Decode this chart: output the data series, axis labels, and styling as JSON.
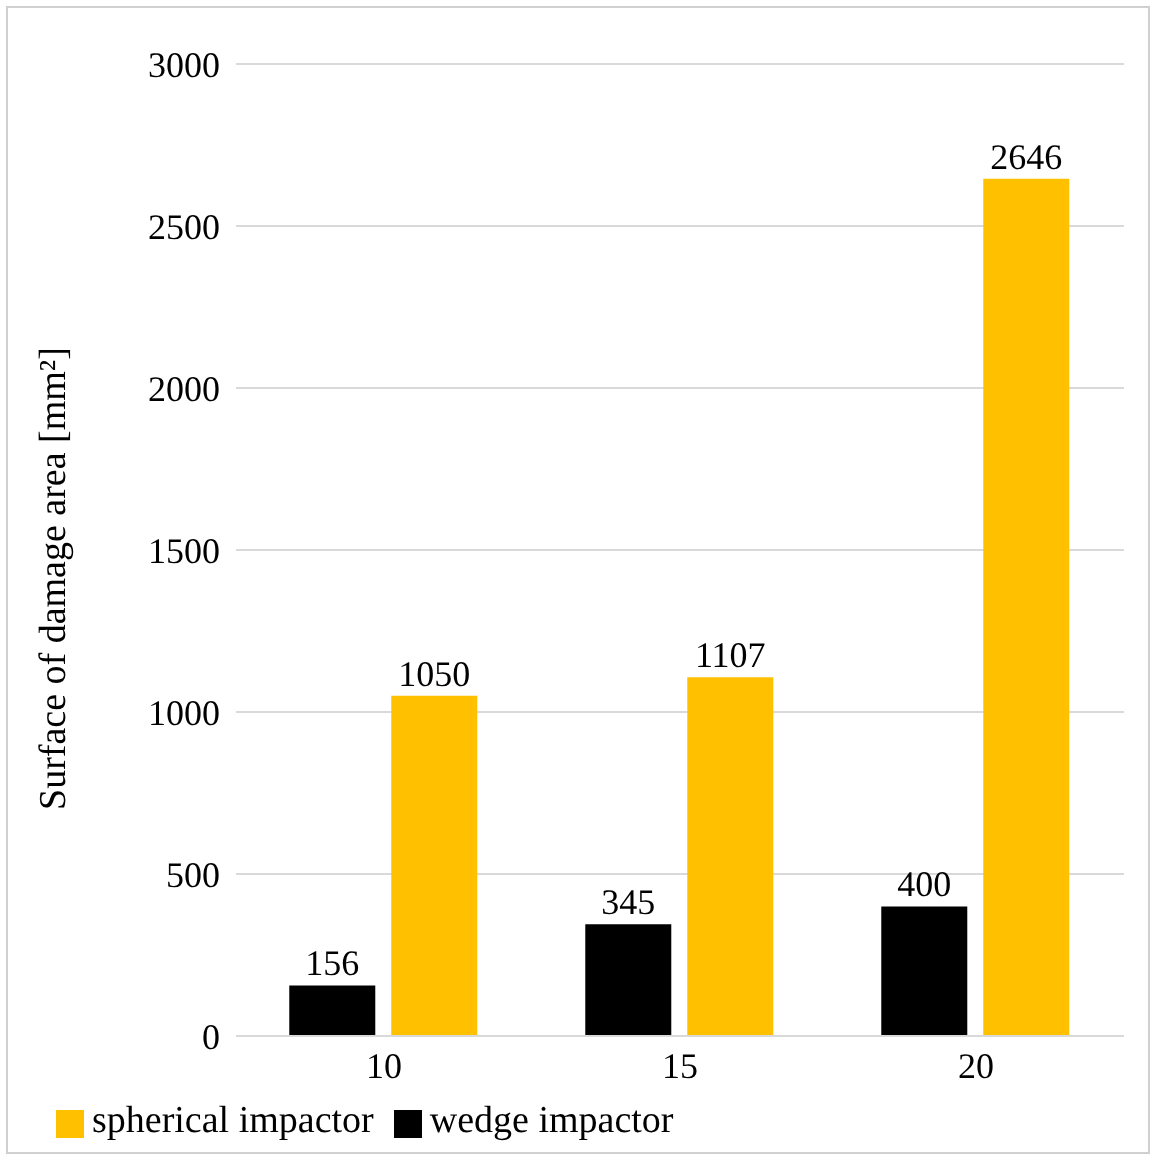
{
  "chart_data": {
    "type": "bar",
    "ylabel": "Surface of damage area [mm²]",
    "categories": [
      "10",
      "15",
      "20"
    ],
    "series": [
      {
        "name": "wedge impactor",
        "color": "#000000",
        "values": [
          156,
          345,
          400
        ]
      },
      {
        "name": "spherical impactor",
        "color": "#ffc000",
        "values": [
          1050,
          1107,
          2646
        ]
      }
    ],
    "ylim": [
      0,
      3000
    ],
    "yticks": [
      0,
      500,
      1000,
      1500,
      2000,
      2500,
      3000
    ],
    "grid": "y",
    "legend": "bottom",
    "data_labels": true
  }
}
